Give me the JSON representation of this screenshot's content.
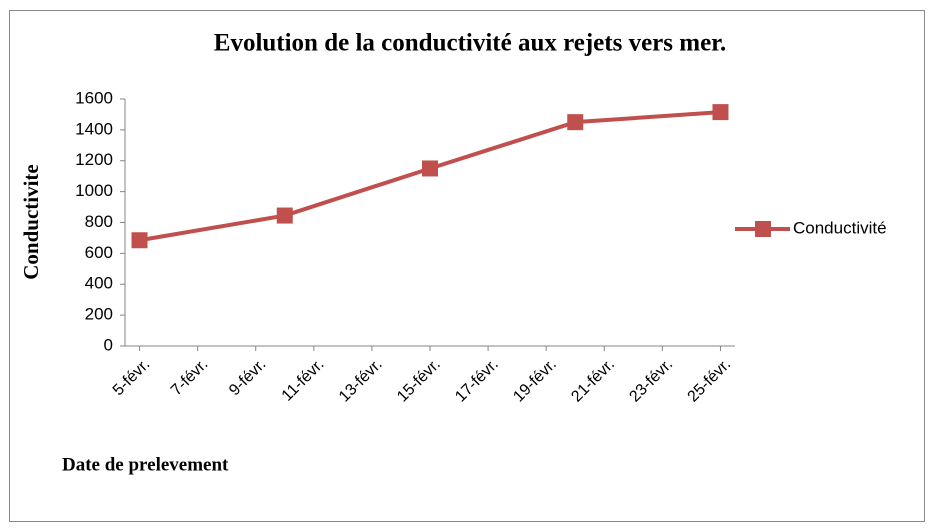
{
  "chart_data": {
    "type": "line",
    "title": "Evolution de la conductivité aux rejets vers mer.",
    "y_label": "Conductivite",
    "x_label": "Date de prelevement",
    "x": [
      5,
      10,
      15,
      20,
      25
    ],
    "series": [
      {
        "name": "Conductivité",
        "color": "#c0504d",
        "values": [
          685,
          845,
          1150,
          1450,
          1515
        ]
      }
    ],
    "xlim": [
      4.5,
      25.5
    ],
    "xticks": [
      {
        "value": 5,
        "label": "5-févr."
      },
      {
        "value": 7,
        "label": "7-févr."
      },
      {
        "value": 9,
        "label": "9-févr."
      },
      {
        "value": 11,
        "label": "11-févr."
      },
      {
        "value": 13,
        "label": "13-févr."
      },
      {
        "value": 15,
        "label": "15-févr."
      },
      {
        "value": 17,
        "label": "17-févr."
      },
      {
        "value": 19,
        "label": "19-févr."
      },
      {
        "value": 21,
        "label": "21-févr."
      },
      {
        "value": 23,
        "label": "23-févr."
      },
      {
        "value": 25,
        "label": "25-févr."
      }
    ],
    "ylim": [
      0,
      1600
    ],
    "yticks": [
      0,
      200,
      400,
      600,
      800,
      1000,
      1200,
      1400,
      1600
    ],
    "grid": false,
    "legend": "right"
  }
}
